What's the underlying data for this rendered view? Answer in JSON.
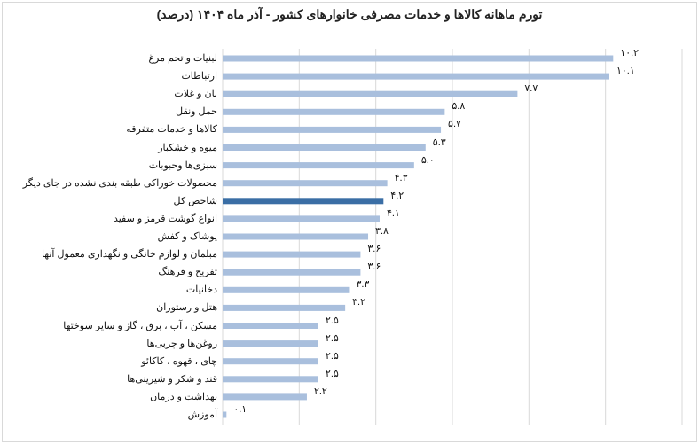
{
  "chart_data": {
    "type": "bar",
    "orientation": "horizontal",
    "title": "تورم ماهانه کالاها و خدمات مصرفی خانوارهای کشور - آذر ماه ۱۴۰۴ (درصد)",
    "xlabel": "",
    "ylabel": "",
    "xlim": [
      0,
      12
    ],
    "grid": true,
    "gridline_step": 2,
    "categories": [
      "لبنیات و تخم مرغ",
      "ارتباطات",
      "نان و غلات",
      "حمل ونقل",
      "کالاها و خدمات متفرقه",
      "میوه و خشکبار",
      "سبزی‌ها وحبوبات",
      "محصولات خوراکی طبقه بندی نشده در جای دیگر",
      "شاخص کل",
      "انواع گوشت قرمز و سفید",
      "پوشاک و کفش",
      "مبلمان و لوازم خانگی و نگهداری معمول آنها",
      "تفریح و فرهنگ",
      "دخانیات",
      "هتل و رستوران",
      "مسکن ، آب ، برق ، گاز و سایر سوختها",
      "روغن‌ها و چربی‌ها",
      "چای ، قهوه ، کاکائو",
      "قند و شکر و شیرینی‌ها",
      "بهداشت و درمان",
      "آموزش"
    ],
    "values": [
      10.2,
      10.1,
      7.7,
      5.8,
      5.7,
      5.3,
      5.0,
      4.3,
      4.2,
      4.1,
      3.8,
      3.6,
      3.6,
      3.3,
      3.2,
      2.5,
      2.5,
      2.5,
      2.5,
      2.2,
      0.1
    ],
    "data_labels": [
      "۱۰.۲",
      "۱۰.۱",
      "۷.۷",
      "۵.۸",
      "۵.۷",
      "۵.۳",
      "۵.۰",
      "۴.۳",
      "۴.۲",
      "۴.۱",
      "۳.۸",
      "۳.۶",
      "۳.۶",
      "۳.۳",
      "۳.۲",
      "۲.۵",
      "۲.۵",
      "۲.۵",
      "۲.۵",
      "۲.۲",
      "۰.۱"
    ],
    "highlight_index": 8,
    "colors": {
      "bar": "#a9bfdd",
      "highlight": "#3a6ea5",
      "grid": "#d9d9d9"
    }
  }
}
